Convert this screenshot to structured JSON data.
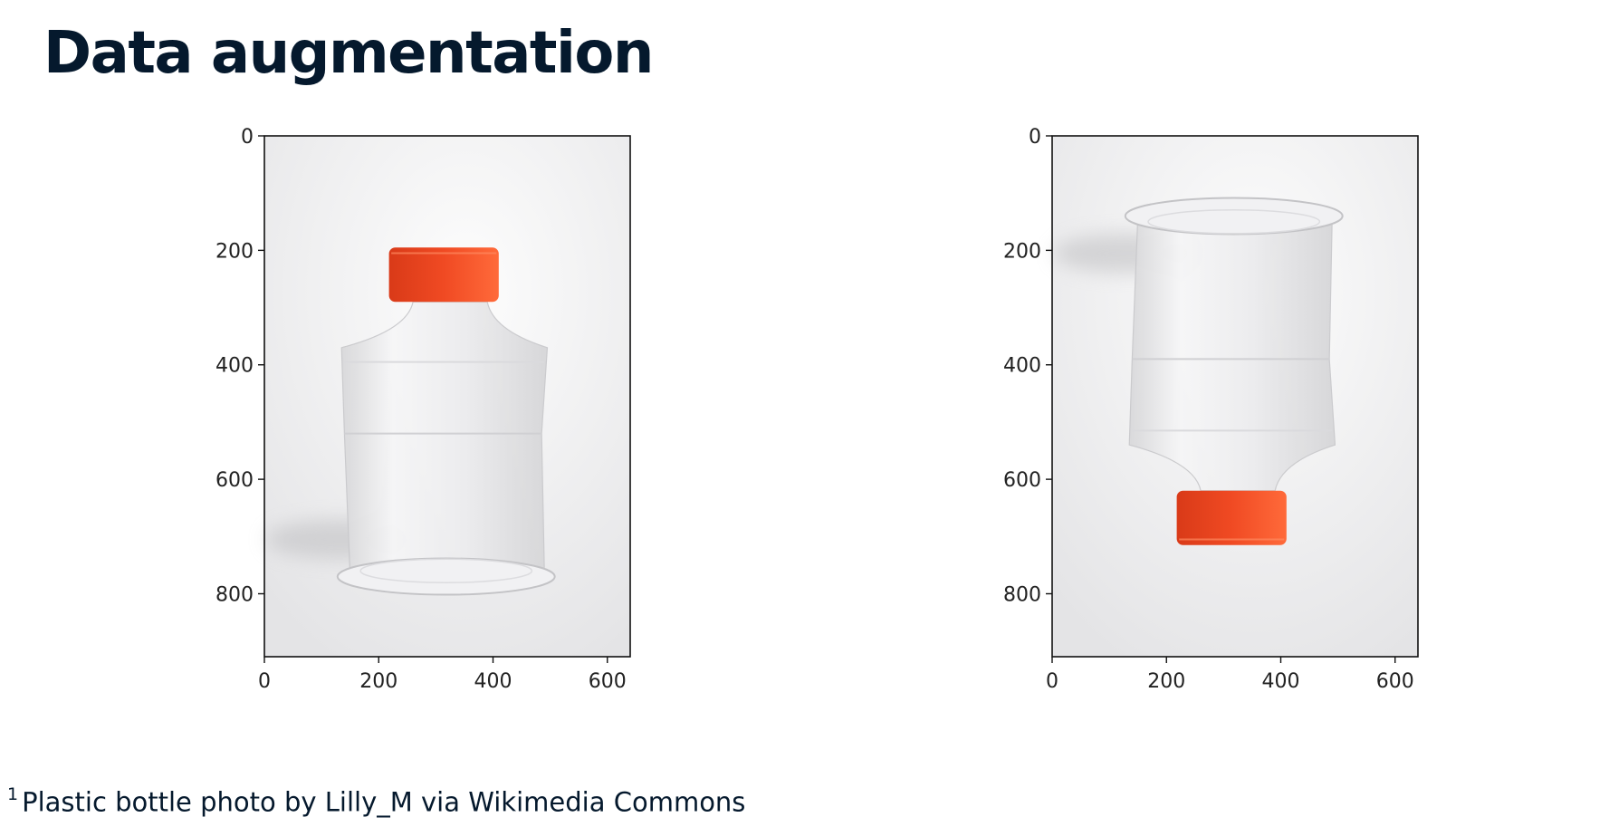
{
  "title": "Data augmentation",
  "footnote": {
    "marker": "1",
    "text": "Plastic bottle photo by Lilly_M via Wikimedia Commons"
  },
  "plots": [
    {
      "image": "plastic bottle with red cap, upright",
      "orientation": "upright",
      "cap_color": "#f04a23",
      "xlim": [
        0,
        640
      ],
      "ylim": [
        910,
        0
      ],
      "x_ticks": [
        0,
        200,
        400,
        600
      ],
      "y_ticks": [
        0,
        200,
        400,
        600,
        800
      ]
    },
    {
      "image": "plastic bottle with red cap, upside down",
      "orientation": "upside-down",
      "cap_color": "#f04a23",
      "xlim": [
        0,
        640
      ],
      "ylim": [
        910,
        0
      ],
      "x_ticks": [
        0,
        200,
        400,
        600
      ],
      "y_ticks": [
        0,
        200,
        400,
        600,
        800
      ]
    }
  ]
}
